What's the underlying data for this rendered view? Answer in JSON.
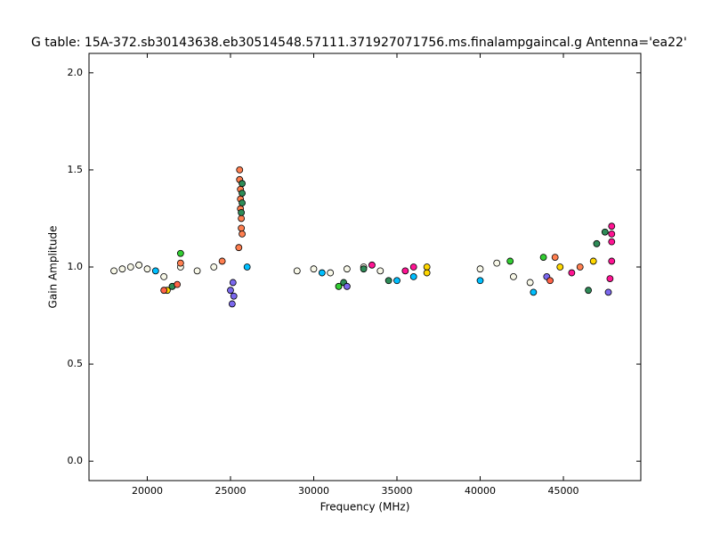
{
  "chart_data": {
    "type": "scatter",
    "title": "G table: 15A-372.sb30143638.eb30514548.57111.371927071756.ms.finalampgaincal.g      Antenna='ea22'",
    "x_label": "Frequency (MHz)",
    "y_label": "Gain Amplitude",
    "xlim": [
      16500,
      49650
    ],
    "ylim": [
      -0.1,
      2.1
    ],
    "xticks": [
      20000,
      25000,
      30000,
      35000,
      40000,
      45000
    ],
    "yticks": [
      {
        "value": 0,
        "label": "0.0"
      },
      0.5,
      {
        "value": 1,
        "label": "1.0"
      },
      1.5,
      {
        "value": 2,
        "label": "2.0"
      }
    ],
    "grid": false,
    "series": [
      {
        "color": "#f8f8e8",
        "x": [
          18000,
          18500,
          19000,
          19500,
          20000,
          21000,
          22000,
          23000,
          24000,
          29000,
          30000,
          31000,
          32000,
          33000,
          34000,
          40000,
          41000,
          42000,
          43000
        ],
        "y": [
          0.98,
          0.99,
          1.0,
          1.01,
          0.99,
          0.95,
          1.0,
          0.98,
          1.0,
          0.98,
          0.99,
          0.97,
          0.99,
          1.0,
          0.98,
          0.99,
          1.02,
          0.95,
          0.92
        ]
      },
      {
        "color": "#ff7f50",
        "x": [
          25550,
          25550,
          25600,
          25600,
          25650,
          25650,
          25700,
          25500,
          25600,
          22000,
          24500,
          44500,
          46000
        ],
        "y": [
          1.5,
          1.45,
          1.4,
          1.3,
          1.25,
          1.2,
          1.17,
          1.1,
          1.35,
          1.02,
          1.03,
          1.05,
          1.0
        ]
      },
      {
        "color": "#2e8b57",
        "x": [
          25700,
          25700,
          25700,
          25650,
          21500,
          31800,
          33000,
          34500,
          46500,
          47000,
          47500
        ],
        "y": [
          1.43,
          1.38,
          1.33,
          1.28,
          0.9,
          0.92,
          0.99,
          0.93,
          0.88,
          1.12,
          1.18
        ]
      },
      {
        "color": "#7b68ee",
        "x": [
          25100,
          25200,
          25000,
          25150,
          32000,
          47700,
          44000
        ],
        "y": [
          0.81,
          0.85,
          0.88,
          0.92,
          0.9,
          0.87,
          0.95
        ]
      },
      {
        "color": "#ff1493",
        "x": [
          36000,
          35500,
          47900,
          47900,
          47900,
          47900,
          47800,
          45500,
          33500
        ],
        "y": [
          1.0,
          0.98,
          1.21,
          1.17,
          1.13,
          1.03,
          0.94,
          0.97,
          1.01
        ]
      },
      {
        "color": "#00bfff",
        "x": [
          35000,
          36000,
          40000,
          43200,
          30500,
          26000,
          20500
        ],
        "y": [
          0.93,
          0.95,
          0.93,
          0.87,
          0.97,
          1.0,
          0.98
        ]
      },
      {
        "color": "#ffd700",
        "x": [
          36800,
          36800,
          21200,
          44800,
          46800
        ],
        "y": [
          1.0,
          0.97,
          0.88,
          1.0,
          1.03
        ]
      },
      {
        "color": "#32cd32",
        "x": [
          22000,
          31500,
          41800,
          43800
        ],
        "y": [
          1.07,
          0.9,
          1.03,
          1.05
        ]
      },
      {
        "color": "#ff6347",
        "x": [
          21000,
          44200,
          21800
        ],
        "y": [
          0.88,
          0.93,
          0.91
        ]
      }
    ]
  }
}
